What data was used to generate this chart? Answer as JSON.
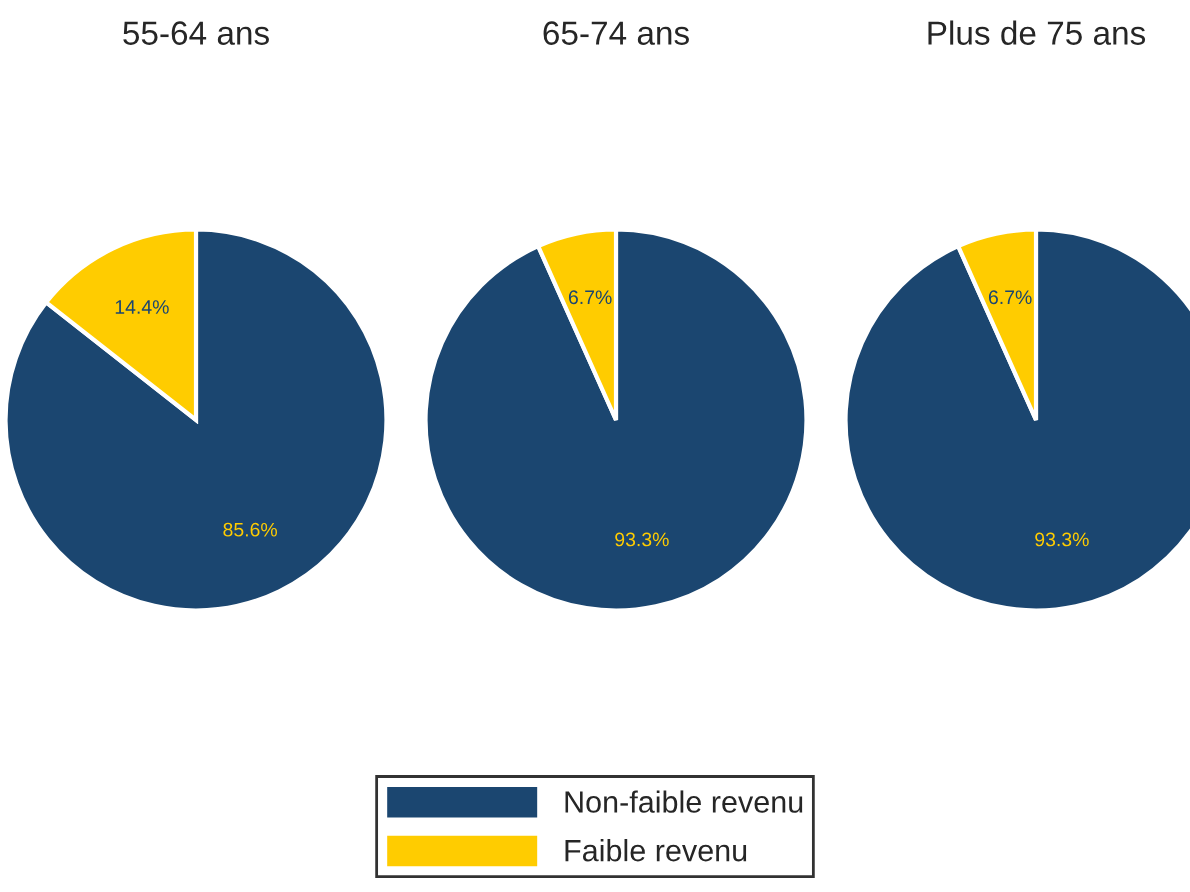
{
  "chart_data": [
    {
      "type": "pie",
      "title": "55-64 ans",
      "categories": [
        "Non-faible revenu",
        "Faible revenu"
      ],
      "values": [
        85.6,
        14.4
      ],
      "colors": [
        "#1b4670",
        "#ffcc00"
      ],
      "value_labels": [
        "85.6%",
        "14.4%"
      ],
      "legend": "bottom"
    },
    {
      "type": "pie",
      "title": "65-74 ans",
      "categories": [
        null,
        null
      ],
      "values": [
        93.3,
        6.7
      ],
      "colors": [
        "#1b4670",
        "#ffcc00"
      ],
      "value_labels": [
        "93.3%",
        "6.7%"
      ]
    },
    {
      "type": "pie",
      "title": "Plus de 75 ans",
      "categories": [
        null,
        null
      ],
      "values": [
        93.3,
        6.7
      ],
      "colors": [
        "#1b4670",
        "#ffcc00"
      ],
      "value_labels": [
        "93.3%",
        "6.7%"
      ]
    }
  ]
}
